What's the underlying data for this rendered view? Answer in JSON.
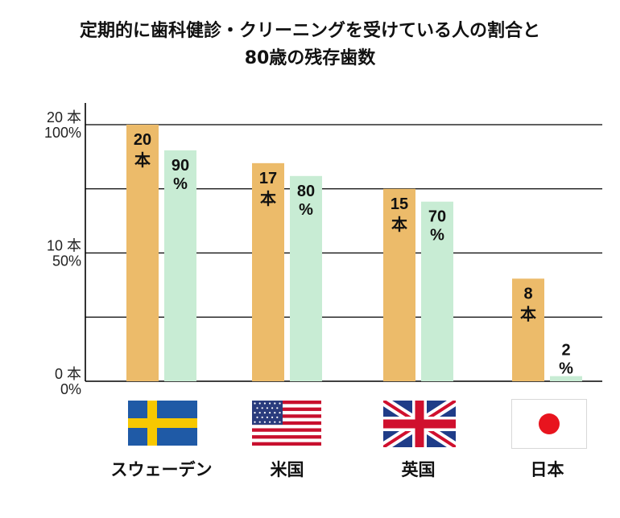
{
  "title": {
    "line1": "定期的に歯科健診・クリーニングを受けている人の割合と",
    "line2": "80歳の残存歯数"
  },
  "chart_data": {
    "type": "bar",
    "categories": [
      "スウェーデン",
      "米国",
      "英国",
      "日本"
    ],
    "series": [
      {
        "name": "",
        "unit": "本",
        "values": [
          20,
          17,
          15,
          8
        ],
        "labels": [
          "20本",
          "17本",
          "15本",
          "8本"
        ],
        "color": "#ecbb6a"
      },
      {
        "name": "",
        "unit": "%",
        "values": [
          90,
          80,
          70,
          2
        ],
        "labels": [
          "90%",
          "80%",
          "70%",
          "2%"
        ],
        "color": "#c8ecd4"
      }
    ],
    "left_axis": {
      "range": [
        0,
        20
      ],
      "ticks": [
        "0 本",
        "10 本",
        "20 本"
      ]
    },
    "right_axis": {
      "range": [
        0,
        100
      ],
      "ticks": [
        "0%",
        "50%",
        "100%"
      ]
    },
    "grid": true
  },
  "flags": [
    "sweden-flag",
    "usa-flag",
    "uk-flag",
    "japan-flag"
  ]
}
